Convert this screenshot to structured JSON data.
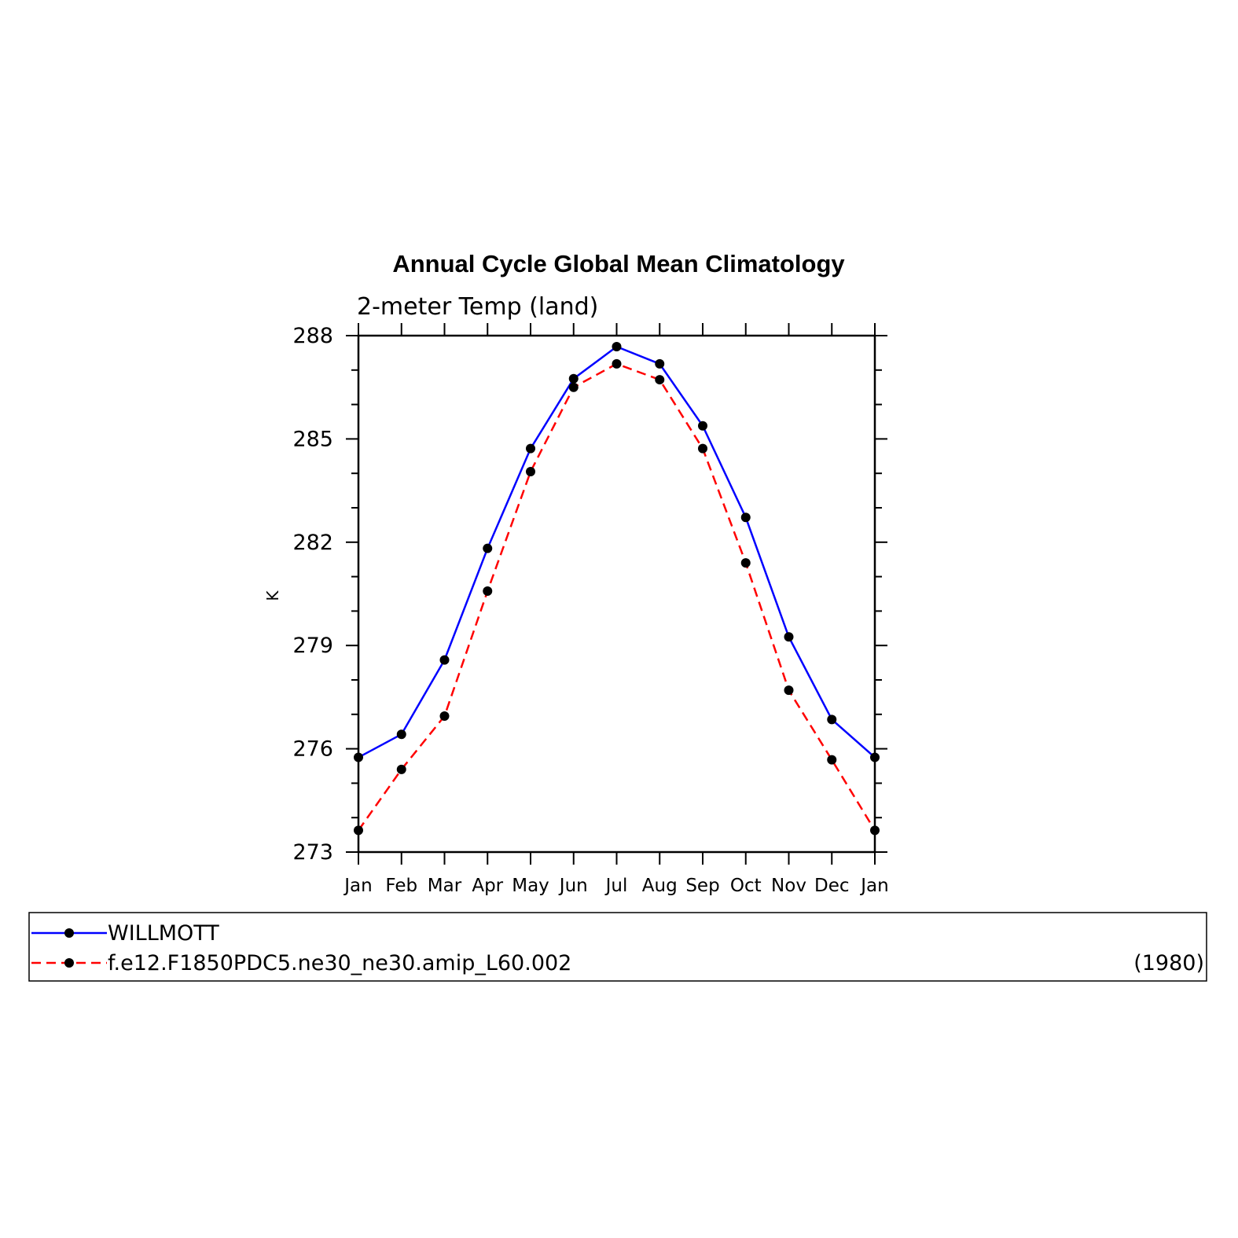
{
  "chart_data": {
    "type": "line",
    "title": "Annual Cycle Global Mean Climatology",
    "subtitle": "2-meter Temp (land)",
    "xlabel": "",
    "ylabel": "K",
    "categories": [
      "Jan",
      "Feb",
      "Mar",
      "Apr",
      "May",
      "Jun",
      "Jul",
      "Aug",
      "Sep",
      "Oct",
      "Nov",
      "Dec",
      "Jan"
    ],
    "ylim": [
      273,
      288
    ],
    "yticks": [
      "273",
      "276",
      "279",
      "282",
      "285",
      "288"
    ],
    "grid": false,
    "legend_position": "bottom",
    "series": [
      {
        "name": "WILLMOTT",
        "color": "#0000ff",
        "line_style": "solid",
        "values": [
          275.75,
          276.42,
          278.58,
          281.82,
          284.72,
          286.75,
          287.68,
          287.18,
          285.38,
          282.72,
          279.25,
          276.85,
          275.75
        ]
      },
      {
        "name": "f.e12.F1850PDC5.ne30_ne30.amip_L60.002",
        "color": "#ff0000",
        "line_style": "dashed",
        "values": [
          273.63,
          275.4,
          276.95,
          280.58,
          284.05,
          286.5,
          287.18,
          286.72,
          284.72,
          281.4,
          277.7,
          275.68,
          273.63
        ]
      }
    ],
    "legend_note": "(1980)",
    "marker_color": "#000000"
  }
}
